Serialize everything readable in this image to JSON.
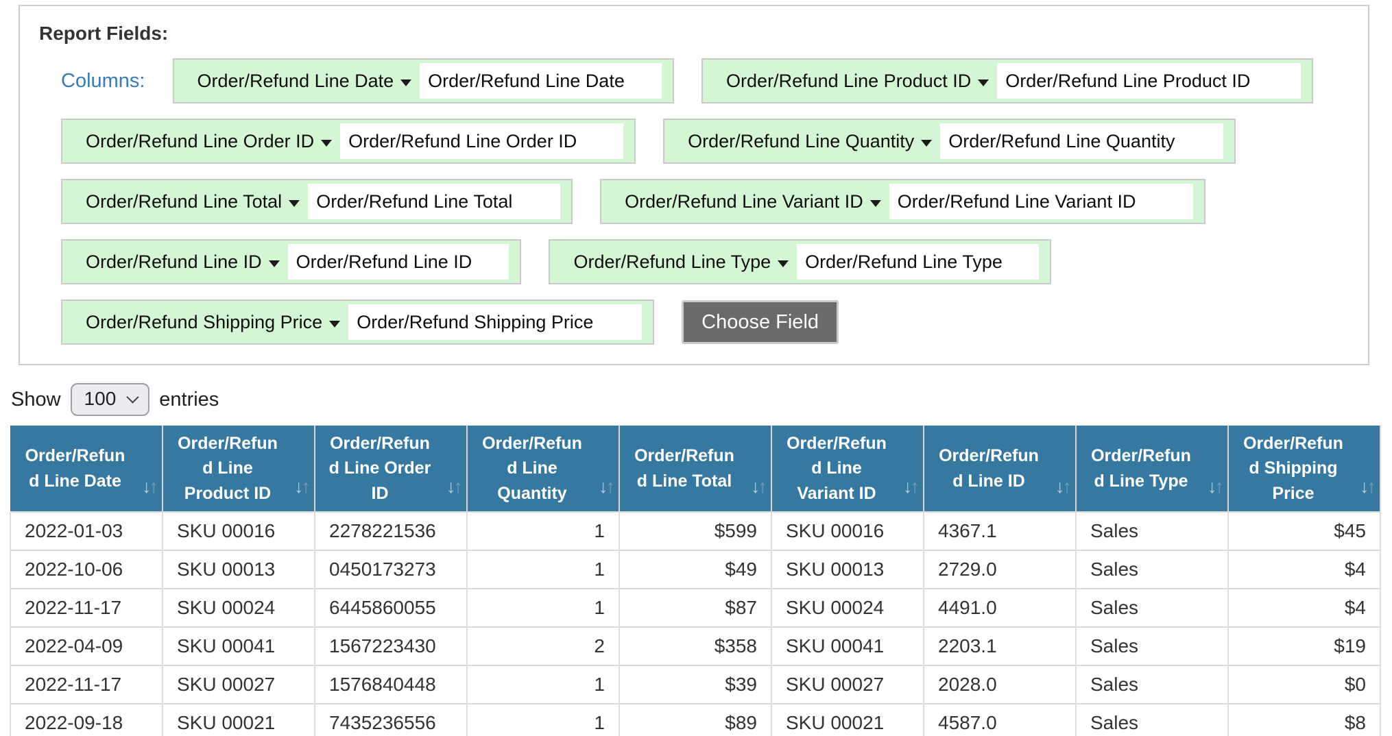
{
  "report_fields": {
    "title": "Report Fields:",
    "columns_label": "Columns:",
    "choose_field_label": "Choose Field",
    "fields": [
      {
        "label": "Order/Refund Line Date",
        "value": "Order/Refund Line Date"
      },
      {
        "label": "Order/Refund Line Product ID",
        "value": "Order/Refund Line Product ID"
      },
      {
        "label": "Order/Refund Line Order ID",
        "value": "Order/Refund Line Order ID"
      },
      {
        "label": "Order/Refund Line Quantity",
        "value": "Order/Refund Line Quantity"
      },
      {
        "label": "Order/Refund Line Total",
        "value": "Order/Refund Line Total"
      },
      {
        "label": "Order/Refund Line Variant ID",
        "value": "Order/Refund Line Variant ID"
      },
      {
        "label": "Order/Refund Line ID",
        "value": "Order/Refund Line ID"
      },
      {
        "label": "Order/Refund Line Type",
        "value": "Order/Refund Line Type"
      },
      {
        "label": "Order/Refund Shipping Price",
        "value": "Order/Refund Shipping Price"
      }
    ]
  },
  "entries_bar": {
    "show_label": "Show",
    "selected_page_size": "100",
    "entries_label": "entries"
  },
  "icons": {
    "sort_down": "↓",
    "sort_up": "↑"
  },
  "table": {
    "columns": [
      {
        "label": "Order/Refund Line Date",
        "align": "left"
      },
      {
        "label": "Order/Refund Line Product ID",
        "align": "left"
      },
      {
        "label": "Order/Refund Line Order ID",
        "align": "left"
      },
      {
        "label": "Order/Refund Line Quantity",
        "align": "right"
      },
      {
        "label": "Order/Refund Line Total",
        "align": "right"
      },
      {
        "label": "Order/Refund Line Variant ID",
        "align": "left"
      },
      {
        "label": "Order/Refund Line ID",
        "align": "left"
      },
      {
        "label": "Order/Refund Line Type",
        "align": "left"
      },
      {
        "label": "Order/Refund Shipping Price",
        "align": "right"
      }
    ],
    "rows": [
      [
        "2022-01-03",
        "SKU 00016",
        "2278221536",
        "1",
        "$599",
        "SKU 00016",
        "4367.1",
        "Sales",
        "$45"
      ],
      [
        "2022-10-06",
        "SKU 00013",
        "0450173273",
        "1",
        "$49",
        "SKU 00013",
        "2729.0",
        "Sales",
        "$4"
      ],
      [
        "2022-11-17",
        "SKU 00024",
        "6445860055",
        "1",
        "$87",
        "SKU 00024",
        "4491.0",
        "Sales",
        "$4"
      ],
      [
        "2022-04-09",
        "SKU 00041",
        "1567223430",
        "2",
        "$358",
        "SKU 00041",
        "2203.1",
        "Sales",
        "$19"
      ],
      [
        "2022-11-17",
        "SKU 00027",
        "1576840448",
        "1",
        "$39",
        "SKU 00027",
        "2028.0",
        "Sales",
        "$0"
      ],
      [
        "2022-09-18",
        "SKU 00021",
        "7435236556",
        "1",
        "$89",
        "SKU 00021",
        "4587.0",
        "Sales",
        "$8"
      ]
    ]
  },
  "colors": {
    "header_blue": "#36789f",
    "chip_green": "#d5f6d5",
    "columns_label_blue": "#387ab8",
    "button_gray": "#6a6a6a",
    "panel_border": "#cccccc"
  }
}
